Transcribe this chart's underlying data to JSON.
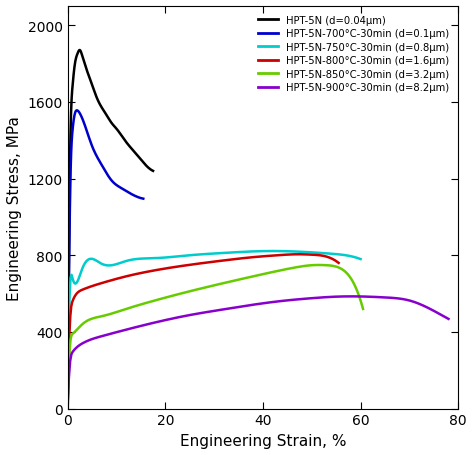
{
  "title": "",
  "xlabel": "Engineering Strain, %",
  "ylabel": "Engineering Stress, MPa",
  "xlim": [
    0,
    80
  ],
  "ylim": [
    0,
    2100
  ],
  "xticks": [
    0,
    20,
    40,
    60,
    80
  ],
  "yticks": [
    0,
    400,
    800,
    1200,
    1600,
    2000
  ],
  "legend_labels": [
    "HPT-5N (d=0.04μm)",
    "HPT-5N-700°C-30min (d=0.1μm)",
    "HPT-5N-750°C-30min (d=0.8μm)",
    "HPT-5N-800°C-30min (d=1.6μm)",
    "HPT-5N-850°C-30min (d=3.2μm)",
    "HPT-5N-900°C-30min (d=8.2μm)"
  ],
  "colors": [
    "#000000",
    "#0000cc",
    "#00cccc",
    "#cc0000",
    "#66cc00",
    "#8800cc"
  ],
  "curves": {
    "black": {
      "x": [
        0.0,
        0.2,
        0.5,
        1.0,
        1.5,
        2.0,
        2.5,
        3.0,
        4.0,
        5.0,
        6.0,
        7.0,
        8.0,
        9.0,
        10.0,
        12.0,
        14.0,
        16.0,
        17.5
      ],
      "y": [
        0,
        600,
        1300,
        1680,
        1800,
        1850,
        1870,
        1840,
        1760,
        1690,
        1620,
        1570,
        1530,
        1490,
        1460,
        1390,
        1330,
        1270,
        1240
      ]
    },
    "blue": {
      "x": [
        0.0,
        0.2,
        0.5,
        1.0,
        1.5,
        2.0,
        2.5,
        3.5,
        5.0,
        7.0,
        9.0,
        11.0,
        13.0,
        15.5
      ],
      "y": [
        0,
        500,
        1100,
        1450,
        1540,
        1555,
        1540,
        1480,
        1370,
        1270,
        1190,
        1150,
        1120,
        1095
      ]
    },
    "cyan": {
      "x": [
        0.0,
        0.3,
        1.0,
        3.0,
        7.0,
        12.0,
        18.0,
        25.0,
        32.0,
        38.0,
        42.0,
        46.0,
        50.0,
        54.0,
        58.0,
        60.0
      ],
      "y": [
        0,
        500,
        680,
        730,
        755,
        770,
        785,
        800,
        812,
        820,
        822,
        820,
        815,
        808,
        795,
        780
      ]
    },
    "red": {
      "x": [
        0.0,
        0.3,
        1.0,
        3.0,
        7.0,
        12.0,
        18.0,
        25.0,
        32.0,
        38.0,
        43.0,
        47.0,
        50.0,
        53.0,
        55.5
      ],
      "y": [
        0,
        340,
        560,
        620,
        655,
        690,
        722,
        750,
        773,
        790,
        800,
        805,
        803,
        793,
        760
      ]
    },
    "green": {
      "x": [
        0.0,
        0.3,
        1.0,
        3.0,
        7.0,
        12.0,
        18.0,
        25.0,
        32.0,
        38.0,
        43.0,
        47.0,
        50.0,
        53.0,
        56.0,
        58.0,
        60.5
      ],
      "y": [
        0,
        250,
        390,
        440,
        482,
        520,
        565,
        612,
        655,
        690,
        718,
        738,
        748,
        748,
        730,
        680,
        520
      ]
    },
    "purple": {
      "x": [
        0.0,
        0.3,
        1.0,
        3.0,
        7.0,
        12.0,
        18.0,
        25.0,
        32.0,
        38.0,
        44.0,
        50.0,
        55.0,
        60.0,
        65.0,
        70.0,
        75.0,
        78.0
      ],
      "y": [
        0,
        180,
        295,
        340,
        378,
        412,
        450,
        488,
        518,
        542,
        562,
        576,
        584,
        585,
        580,
        564,
        510,
        468
      ]
    }
  },
  "linewidth": 1.8
}
